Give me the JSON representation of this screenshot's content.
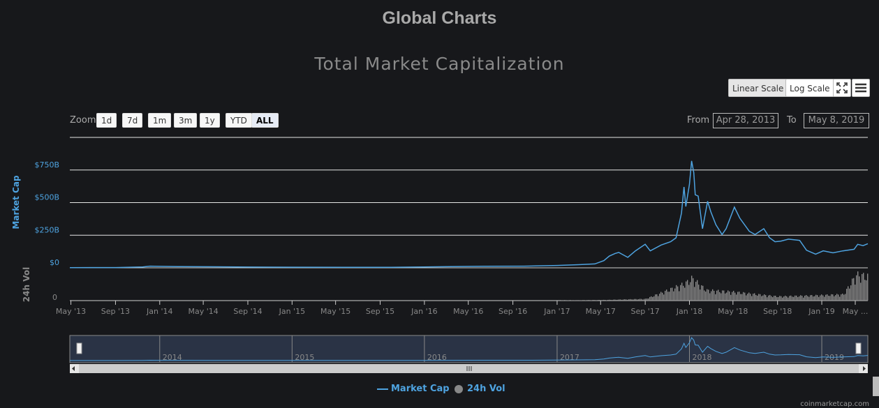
{
  "page": {
    "title": "Global Charts",
    "credit": "coinmarketcap.com"
  },
  "toolbar": {
    "linear_label": "Linear Scale",
    "log_label": "Log Scale",
    "fullscreen_icon": "fullscreen-icon",
    "menu_icon": "hamburger-menu-icon"
  },
  "zoom": {
    "label": "Zoom",
    "buttons": [
      "1d",
      "7d",
      "1m",
      "3m",
      "1y",
      "YTD",
      "ALL"
    ],
    "active": "ALL"
  },
  "range": {
    "from_label": "From",
    "from_value": "Apr 28, 2013",
    "to_label": "To",
    "to_value": "May 8, 2019"
  },
  "legend": {
    "market_cap": "Market Cap",
    "vol": "24h Vol"
  },
  "colors": {
    "market_cap": "#4ea3e0",
    "volume": "#888888",
    "background": "#17181b"
  },
  "chart_data": {
    "type": "line",
    "title": "Total Market Capitalization",
    "x_start": "2013-04-28",
    "x_end": "2019-05-08",
    "x_ticks": [
      "May '13",
      "Sep '13",
      "Jan '14",
      "May '14",
      "Sep '14",
      "Jan '15",
      "May '15",
      "Sep '15",
      "Jan '16",
      "May '16",
      "Sep '16",
      "Jan '17",
      "May '17",
      "Sep '17",
      "Jan '18",
      "May '18",
      "Sep '18",
      "Jan '19",
      "May ..."
    ],
    "navigator_ticks": [
      "2014",
      "2015",
      "2016",
      "2017",
      "2018",
      "2019"
    ],
    "y_axis": {
      "label": "Market Cap",
      "ticks": [
        "$0",
        "$250B",
        "$500B",
        "$750B"
      ],
      "unit": "B USD",
      "ylim": [
        0,
        1000
      ]
    },
    "vol_axis": {
      "label": "24h Vol",
      "ticks": [
        "0"
      ]
    },
    "series": [
      {
        "name": "Market Cap",
        "points": [
          [
            "2013-04-28",
            1.5
          ],
          [
            "2013-09-01",
            2
          ],
          [
            "2013-11-15",
            7
          ],
          [
            "2013-12-05",
            13
          ],
          [
            "2014-01-01",
            11
          ],
          [
            "2014-03-01",
            9
          ],
          [
            "2014-06-01",
            8
          ],
          [
            "2014-09-01",
            6
          ],
          [
            "2015-01-01",
            5
          ],
          [
            "2015-06-01",
            4
          ],
          [
            "2015-10-01",
            4.5
          ],
          [
            "2016-01-01",
            7
          ],
          [
            "2016-06-15",
            12
          ],
          [
            "2016-10-01",
            13
          ],
          [
            "2017-01-01",
            18
          ],
          [
            "2017-03-01",
            24
          ],
          [
            "2017-04-15",
            30
          ],
          [
            "2017-05-10",
            55
          ],
          [
            "2017-05-25",
            90
          ],
          [
            "2017-06-10",
            110
          ],
          [
            "2017-06-20",
            118
          ],
          [
            "2017-07-15",
            80
          ],
          [
            "2017-08-05",
            130
          ],
          [
            "2017-09-01",
            180
          ],
          [
            "2017-09-15",
            130
          ],
          [
            "2017-10-15",
            175
          ],
          [
            "2017-11-10",
            200
          ],
          [
            "2017-11-25",
            230
          ],
          [
            "2017-12-10",
            420
          ],
          [
            "2017-12-17",
            620
          ],
          [
            "2017-12-22",
            470
          ],
          [
            "2018-01-01",
            640
          ],
          [
            "2018-01-07",
            820
          ],
          [
            "2018-01-13",
            730
          ],
          [
            "2018-01-17",
            560
          ],
          [
            "2018-01-25",
            550
          ],
          [
            "2018-02-06",
            300
          ],
          [
            "2018-02-20",
            510
          ],
          [
            "2018-03-01",
            430
          ],
          [
            "2018-03-15",
            330
          ],
          [
            "2018-04-01",
            255
          ],
          [
            "2018-04-12",
            300
          ],
          [
            "2018-05-05",
            465
          ],
          [
            "2018-05-20",
            380
          ],
          [
            "2018-06-15",
            280
          ],
          [
            "2018-07-01",
            255
          ],
          [
            "2018-07-25",
            300
          ],
          [
            "2018-08-10",
            230
          ],
          [
            "2018-08-25",
            200
          ],
          [
            "2018-09-10",
            205
          ],
          [
            "2018-10-01",
            220
          ],
          [
            "2018-11-01",
            210
          ],
          [
            "2018-11-20",
            135
          ],
          [
            "2018-12-15",
            105
          ],
          [
            "2019-01-05",
            130
          ],
          [
            "2019-02-01",
            115
          ],
          [
            "2019-02-28",
            130
          ],
          [
            "2019-03-31",
            142
          ],
          [
            "2019-04-10",
            180
          ],
          [
            "2019-04-25",
            170
          ],
          [
            "2019-05-08",
            185
          ]
        ]
      },
      {
        "name": "24h Vol",
        "points": [
          [
            "2013-04-28",
            0
          ],
          [
            "2017-01-01",
            0.5
          ],
          [
            "2017-05-15",
            2
          ],
          [
            "2017-09-01",
            5
          ],
          [
            "2017-12-20",
            50
          ],
          [
            "2018-01-07",
            65
          ],
          [
            "2018-02-15",
            30
          ],
          [
            "2018-05-01",
            25
          ],
          [
            "2018-09-01",
            12
          ],
          [
            "2018-12-15",
            15
          ],
          [
            "2019-03-01",
            18
          ],
          [
            "2019-04-05",
            75
          ],
          [
            "2019-05-08",
            70
          ]
        ]
      }
    ],
    "legend_position": "bottom-center"
  }
}
